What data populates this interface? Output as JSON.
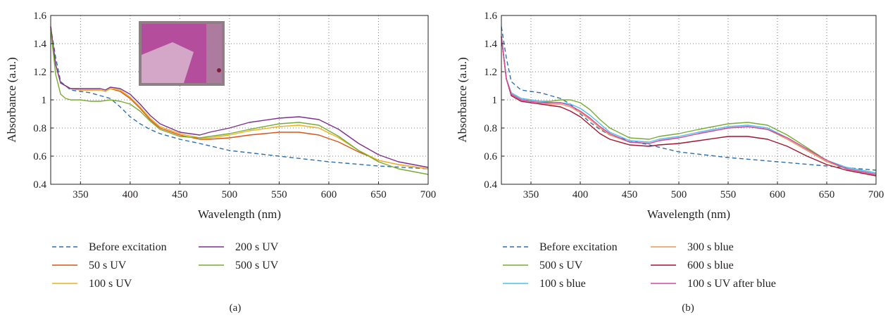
{
  "chart_data": [
    {
      "type": "line",
      "panel_label": "(a)",
      "xlabel": "Wavelength (nm)",
      "ylabel": "Absorbance (a.u.)",
      "xlim": [
        320,
        700
      ],
      "ylim": [
        0.4,
        1.6
      ],
      "x_ticks": [
        350,
        400,
        450,
        500,
        550,
        600,
        650,
        700
      ],
      "y_ticks": [
        0.4,
        0.6,
        0.8,
        1,
        1.2,
        1.4,
        1.6
      ],
      "x_tick_labels": [
        "350",
        "400",
        "450",
        "500",
        "550",
        "600",
        "650",
        "700"
      ],
      "y_tick_labels": [
        "0.4",
        "0.6",
        "0.8",
        "1",
        "1.2",
        "1.4",
        "1.6"
      ],
      "grid": true,
      "inset": "photo of purple film (top-left)",
      "legend_position": "below",
      "legend_columns": [
        [
          "Before excitation",
          "50 s UV",
          "100 s UV"
        ],
        [
          "200 s UV",
          "500 s UV"
        ]
      ],
      "series": [
        {
          "name": "Before excitation",
          "color": "#2b6fb0",
          "dashed": true,
          "x": [
            320,
            325,
            330,
            340,
            350,
            360,
            370,
            380,
            390,
            400,
            410,
            420,
            430,
            450,
            470,
            500,
            550,
            600,
            650,
            700
          ],
          "y": [
            1.52,
            1.3,
            1.13,
            1.07,
            1.06,
            1.05,
            1.03,
            1.01,
            0.95,
            0.88,
            0.83,
            0.79,
            0.76,
            0.72,
            0.69,
            0.64,
            0.6,
            0.56,
            0.53,
            0.51
          ]
        },
        {
          "name": "50 s UV",
          "color": "#d95319",
          "x": [
            320,
            325,
            330,
            340,
            350,
            360,
            370,
            375,
            380,
            390,
            400,
            410,
            420,
            430,
            450,
            470,
            480,
            500,
            520,
            550,
            570,
            590,
            610,
            630,
            650,
            670,
            700
          ],
          "y": [
            1.52,
            1.25,
            1.12,
            1.08,
            1.07,
            1.07,
            1.07,
            1.06,
            1.08,
            1.06,
            1.01,
            0.94,
            0.86,
            0.8,
            0.75,
            0.72,
            0.72,
            0.73,
            0.75,
            0.77,
            0.77,
            0.75,
            0.7,
            0.63,
            0.57,
            0.54,
            0.51
          ]
        },
        {
          "name": "100 s UV",
          "color": "#edb120",
          "x": [
            320,
            325,
            330,
            340,
            350,
            360,
            370,
            375,
            380,
            390,
            400,
            410,
            420,
            430,
            450,
            470,
            480,
            500,
            520,
            550,
            570,
            590,
            610,
            630,
            650,
            670,
            700
          ],
          "y": [
            1.52,
            1.25,
            1.12,
            1.08,
            1.07,
            1.07,
            1.07,
            1.06,
            1.08,
            1.07,
            1.02,
            0.95,
            0.87,
            0.81,
            0.76,
            0.73,
            0.73,
            0.75,
            0.78,
            0.81,
            0.82,
            0.8,
            0.73,
            0.64,
            0.57,
            0.54,
            0.51
          ]
        },
        {
          "name": "200 s UV",
          "color": "#7e2f8e",
          "x": [
            320,
            325,
            330,
            340,
            350,
            360,
            370,
            375,
            380,
            390,
            400,
            410,
            420,
            430,
            450,
            470,
            480,
            500,
            520,
            550,
            570,
            590,
            610,
            630,
            650,
            670,
            700
          ],
          "y": [
            1.52,
            1.25,
            1.12,
            1.08,
            1.08,
            1.08,
            1.08,
            1.07,
            1.09,
            1.08,
            1.04,
            0.97,
            0.89,
            0.83,
            0.77,
            0.75,
            0.77,
            0.8,
            0.84,
            0.87,
            0.88,
            0.86,
            0.79,
            0.69,
            0.61,
            0.56,
            0.52
          ]
        },
        {
          "name": "500 s UV",
          "color": "#77ac30",
          "x": [
            320,
            325,
            330,
            335,
            340,
            350,
            360,
            370,
            380,
            390,
            400,
            410,
            420,
            430,
            450,
            470,
            480,
            500,
            520,
            550,
            570,
            590,
            610,
            630,
            650,
            670,
            700
          ],
          "y": [
            1.5,
            1.18,
            1.04,
            1.01,
            1.0,
            1.0,
            0.99,
            0.99,
            1.0,
            0.99,
            0.97,
            0.92,
            0.85,
            0.79,
            0.74,
            0.73,
            0.74,
            0.76,
            0.79,
            0.83,
            0.84,
            0.82,
            0.74,
            0.64,
            0.56,
            0.51,
            0.47
          ]
        }
      ]
    },
    {
      "type": "line",
      "panel_label": "(b)",
      "xlabel": "Wavelength (nm)",
      "ylabel": "Absorbance (a.u.)",
      "xlim": [
        320,
        700
      ],
      "ylim": [
        0.4,
        1.6
      ],
      "x_ticks": [
        350,
        400,
        450,
        500,
        550,
        600,
        650,
        700
      ],
      "y_ticks": [
        0.4,
        0.6,
        0.8,
        1,
        1.2,
        1.4,
        1.6
      ],
      "x_tick_labels": [
        "350",
        "400",
        "450",
        "500",
        "550",
        "600",
        "650",
        "700"
      ],
      "y_tick_labels": [
        "0.4",
        "0.6",
        "0.8",
        "1",
        "1.2",
        "1.4",
        "1.6"
      ],
      "grid": true,
      "legend_position": "below",
      "legend_columns": [
        [
          "Before excitation",
          "500 s UV",
          "100 s blue"
        ],
        [
          "300 s blue",
          "600 s blue",
          "100 s UV after blue"
        ]
      ],
      "series": [
        {
          "name": "Before excitation",
          "color": "#2b6fb0",
          "dashed": true,
          "x": [
            320,
            325,
            330,
            340,
            350,
            360,
            370,
            380,
            390,
            400,
            410,
            420,
            430,
            450,
            470,
            500,
            550,
            600,
            650,
            700
          ],
          "y": [
            1.52,
            1.3,
            1.13,
            1.07,
            1.06,
            1.05,
            1.03,
            1.01,
            0.97,
            0.9,
            0.84,
            0.79,
            0.75,
            0.71,
            0.68,
            0.63,
            0.59,
            0.56,
            0.53,
            0.5
          ]
        },
        {
          "name": "500 s UV",
          "color": "#77ac30",
          "x": [
            320,
            325,
            330,
            340,
            350,
            360,
            370,
            380,
            390,
            400,
            410,
            420,
            430,
            450,
            470,
            480,
            500,
            520,
            550,
            570,
            590,
            610,
            630,
            650,
            670,
            700
          ],
          "y": [
            1.45,
            1.15,
            1.05,
            1.01,
            1.0,
            0.99,
            0.99,
            1.0,
            1.0,
            0.98,
            0.93,
            0.86,
            0.8,
            0.73,
            0.72,
            0.74,
            0.76,
            0.79,
            0.83,
            0.84,
            0.82,
            0.75,
            0.66,
            0.57,
            0.52,
            0.48
          ]
        },
        {
          "name": "100 s blue",
          "color": "#4dbeee",
          "x": [
            320,
            325,
            330,
            340,
            350,
            360,
            370,
            380,
            390,
            400,
            410,
            420,
            430,
            450,
            470,
            480,
            500,
            520,
            550,
            570,
            590,
            610,
            630,
            650,
            670,
            700
          ],
          "y": [
            1.45,
            1.15,
            1.05,
            1.01,
            1.0,
            0.99,
            0.98,
            0.98,
            0.97,
            0.94,
            0.89,
            0.83,
            0.77,
            0.71,
            0.7,
            0.72,
            0.74,
            0.77,
            0.81,
            0.82,
            0.8,
            0.73,
            0.65,
            0.57,
            0.52,
            0.48
          ]
        },
        {
          "name": "300 s blue",
          "color": "#e8965a",
          "x": [
            320,
            325,
            330,
            340,
            350,
            360,
            370,
            380,
            390,
            400,
            410,
            420,
            430,
            450,
            470,
            480,
            500,
            520,
            550,
            570,
            590,
            610,
            630,
            650,
            670,
            700
          ],
          "y": [
            1.45,
            1.15,
            1.04,
            1.0,
            0.99,
            0.98,
            0.97,
            0.97,
            0.95,
            0.91,
            0.86,
            0.8,
            0.75,
            0.7,
            0.69,
            0.71,
            0.73,
            0.76,
            0.8,
            0.81,
            0.79,
            0.72,
            0.64,
            0.56,
            0.51,
            0.47
          ]
        },
        {
          "name": "600 s blue",
          "color": "#a2142f",
          "x": [
            320,
            325,
            330,
            340,
            350,
            360,
            370,
            380,
            390,
            400,
            410,
            420,
            430,
            450,
            470,
            480,
            500,
            520,
            550,
            570,
            590,
            610,
            630,
            650,
            670,
            700
          ],
          "y": [
            1.45,
            1.15,
            1.03,
            0.99,
            0.98,
            0.97,
            0.96,
            0.95,
            0.92,
            0.88,
            0.82,
            0.76,
            0.72,
            0.68,
            0.67,
            0.68,
            0.69,
            0.71,
            0.74,
            0.74,
            0.72,
            0.67,
            0.6,
            0.54,
            0.5,
            0.46
          ]
        },
        {
          "name": "100 s UV after blue",
          "color": "#d5479c",
          "x": [
            320,
            325,
            330,
            340,
            350,
            360,
            370,
            380,
            390,
            400,
            410,
            420,
            430,
            450,
            470,
            480,
            500,
            520,
            550,
            570,
            590,
            610,
            630,
            650,
            670,
            700
          ],
          "y": [
            1.45,
            1.15,
            1.04,
            1.0,
            0.99,
            0.98,
            0.98,
            0.98,
            0.96,
            0.92,
            0.87,
            0.81,
            0.76,
            0.7,
            0.69,
            0.71,
            0.73,
            0.76,
            0.8,
            0.81,
            0.79,
            0.73,
            0.65,
            0.57,
            0.51,
            0.47
          ]
        }
      ]
    }
  ]
}
